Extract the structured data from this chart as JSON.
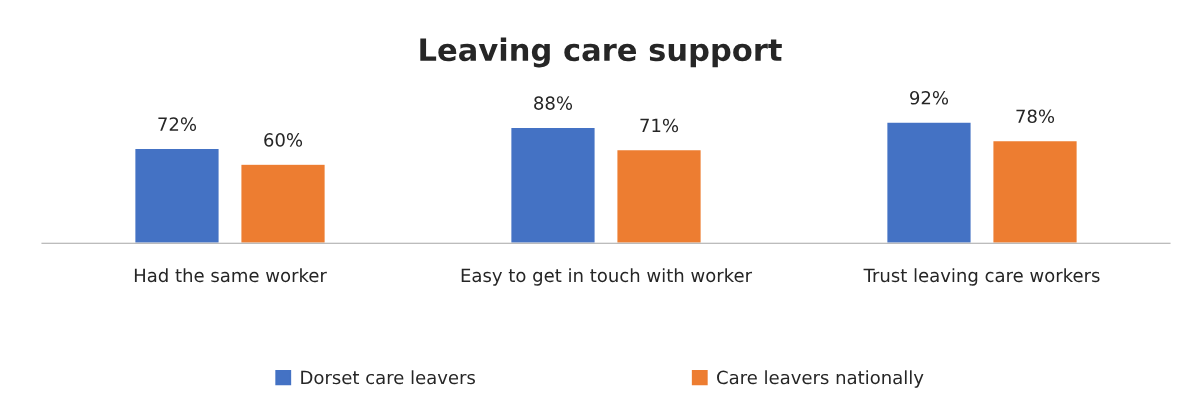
{
  "chart_data": {
    "type": "bar",
    "title": "Leaving care support",
    "categories": [
      "Had the same worker",
      "Easy to get in touch with worker",
      "Trust leaving care workers"
    ],
    "series": [
      {
        "name": "Dorset care leavers",
        "color": "#4472c4",
        "values": [
          72,
          88,
          92
        ],
        "value_labels": [
          "72%",
          "88%",
          "92%"
        ]
      },
      {
        "name": "Care leavers nationally",
        "color": "#ed7d31",
        "values": [
          60,
          71,
          78
        ],
        "value_labels": [
          "60%",
          "71%",
          "78%"
        ]
      }
    ],
    "grid": false,
    "legend": "bottom"
  }
}
